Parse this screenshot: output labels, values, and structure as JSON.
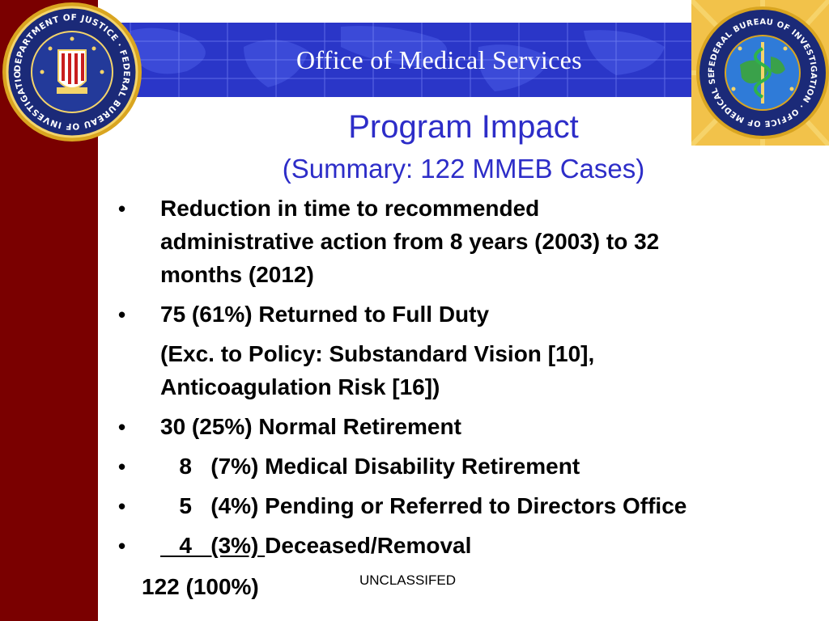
{
  "banner": {
    "title": "Office of Medical Services"
  },
  "heading": {
    "title": "Program Impact",
    "subtitle": "(Summary: 122 MMEB Cases)"
  },
  "bullets": [
    {
      "lines": [
        "Reduction in time to recommended",
        "administrative action from 8 years (2003) to 32",
        "months (2012)"
      ]
    },
    {
      "lines": [
        "75 (61%) Returned to Full Duty"
      ]
    },
    {
      "lines": [
        "30 (25%) Normal Retirement"
      ]
    },
    {
      "lines": [
        "   8   (7%) Medical Disability Retirement"
      ]
    },
    {
      "lines": [
        "   5   (4%) Pending or Referred to Directors Office"
      ]
    },
    {
      "prefix_underlined": "   4   (3%) ",
      "text": "Deceased/Removal"
    }
  ],
  "note": {
    "lines": [
      "(Exc. to Policy: Substandard Vision [10],",
      "Anticoagulation Risk [16])"
    ]
  },
  "total": "122 (100%)",
  "classification": "UNCLASSIFED",
  "seals": {
    "left_text": "DEPARTMENT OF JUSTICE · FEDERAL BUREAU OF INVESTIGATION",
    "right_text": "FEDERAL BUREAU OF INVESTIGATION · OFFICE OF MEDICAL SERVICES"
  },
  "colors": {
    "sidebar": "#7a0000",
    "banner": "#2a36c8",
    "heading": "#2d2dc8",
    "seal_gold": "#d9a520",
    "seal_blue": "#1b2a78"
  }
}
